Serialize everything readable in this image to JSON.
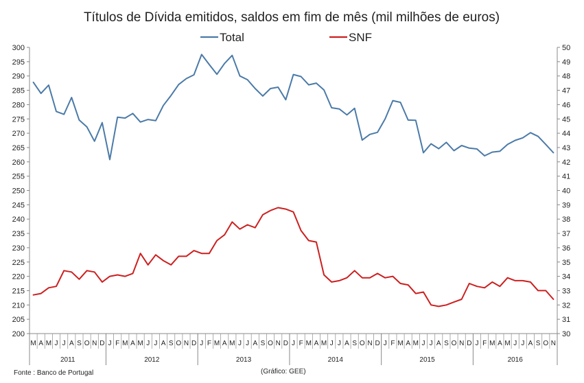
{
  "chart_data": {
    "type": "line",
    "title": "Títulos de Dívida emitidos, saldos em fim de mês  (mil milhões de euros)",
    "colors": {
      "total": "#4a7aa8",
      "snf": "#cc1f1f"
    },
    "y_left": {
      "min": 200,
      "max": 300,
      "step": 5
    },
    "y_right": {
      "min": 30,
      "max": 50,
      "step": 1
    },
    "months": [
      "M",
      "A",
      "M",
      "J",
      "J",
      "A",
      "S",
      "O",
      "N",
      "D",
      "J",
      "F",
      "M",
      "A",
      "M",
      "J",
      "J",
      "A",
      "S",
      "O",
      "N",
      "D",
      "J",
      "F",
      "M",
      "A",
      "M",
      "J",
      "J",
      "A",
      "S",
      "O",
      "N",
      "D",
      "J",
      "F",
      "M",
      "A",
      "M",
      "J",
      "J",
      "A",
      "S",
      "O",
      "N",
      "D",
      "J",
      "F",
      "M",
      "A",
      "M",
      "J",
      "J",
      "A",
      "S",
      "O",
      "N",
      "D",
      "J",
      "F",
      "M",
      "A",
      "M",
      "J",
      "J",
      "A",
      "S",
      "O",
      "N"
    ],
    "years": [
      {
        "label": "2011",
        "start": 0,
        "count": 10
      },
      {
        "label": "2012",
        "start": 10,
        "count": 12
      },
      {
        "label": "2013",
        "start": 22,
        "count": 12
      },
      {
        "label": "2014",
        "start": 34,
        "count": 12
      },
      {
        "label": "2015",
        "start": 46,
        "count": 12
      },
      {
        "label": "2016",
        "start": 58,
        "count": 11
      }
    ],
    "series": [
      {
        "name": "Total",
        "axis": "left",
        "values": [
          287.8,
          283.9,
          286.8,
          277.6,
          276.6,
          282.5,
          274.6,
          272.2,
          267.2,
          273.7,
          260.8,
          275.6,
          275.3,
          276.9,
          273.9,
          274.8,
          274.4,
          279.7,
          283.2,
          287.0,
          289.1,
          290.4,
          297.5,
          294.0,
          290.6,
          294.4,
          297.2,
          290.0,
          288.7,
          285.6,
          283.0,
          285.6,
          286.1,
          281.7,
          290.5,
          289.8,
          286.9,
          287.5,
          285.1,
          278.9,
          278.5,
          276.4,
          278.7,
          267.6,
          269.6,
          270.3,
          275.0,
          281.4,
          280.8,
          274.6,
          274.5,
          263.2,
          266.3,
          264.6,
          266.8,
          263.9,
          265.7,
          264.8,
          264.5,
          262.1,
          263.4,
          263.7,
          266.1,
          267.5,
          268.4,
          270.2,
          268.9,
          266.1,
          263.2
        ]
      },
      {
        "name": "SNF",
        "axis": "right",
        "values": [
          32.7,
          32.8,
          33.2,
          33.3,
          34.4,
          34.3,
          33.8,
          34.4,
          34.3,
          33.6,
          34.0,
          34.1,
          34.0,
          34.2,
          35.6,
          34.8,
          35.5,
          35.1,
          34.8,
          35.4,
          35.4,
          35.8,
          35.6,
          35.6,
          36.5,
          36.9,
          37.8,
          37.3,
          37.6,
          37.4,
          38.3,
          38.6,
          38.8,
          38.7,
          38.5,
          37.2,
          36.5,
          36.4,
          34.1,
          33.6,
          33.7,
          33.9,
          34.4,
          33.9,
          33.9,
          34.2,
          33.9,
          34.0,
          33.5,
          33.4,
          32.8,
          32.9,
          32.0,
          31.9,
          32.0,
          32.2,
          32.4,
          33.5,
          33.3,
          33.2,
          33.6,
          33.3,
          33.9,
          33.7,
          33.7,
          33.6,
          33.0,
          33.0,
          32.4
        ]
      }
    ],
    "legend": {
      "total": "Total",
      "snf": "SNF"
    },
    "source": "Fonte : Banco de Portugal",
    "credit": "(Gráfico: GEE)"
  }
}
